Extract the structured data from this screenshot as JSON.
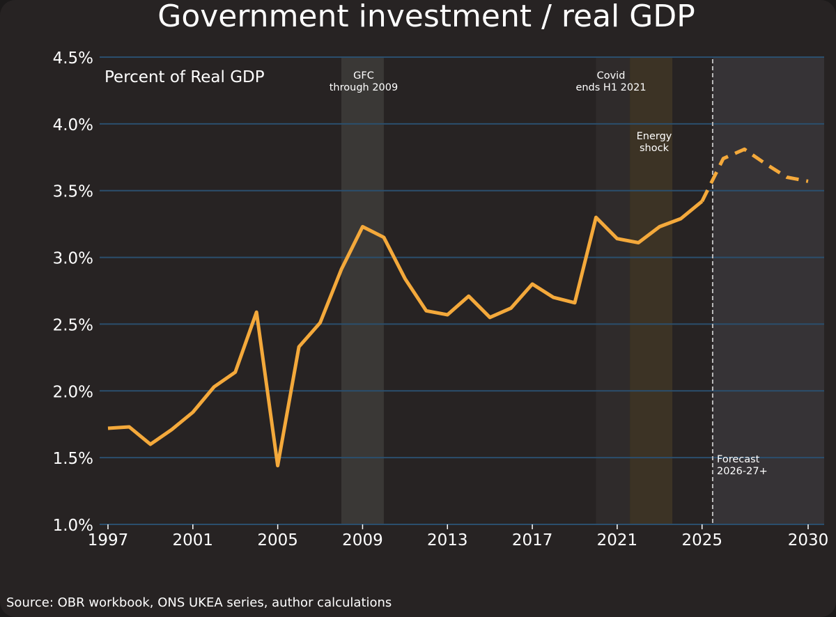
{
  "chart_data": {
    "type": "line",
    "title": "Government investment / real GDP",
    "subtitle": "Percent of Real GDP",
    "source": "Source: OBR workbook, ONS UKEA series, author calculations",
    "xlabel": "",
    "ylabel": "",
    "xlim": [
      1997,
      2030
    ],
    "ylim": [
      1.0,
      4.5
    ],
    "x_ticks": [
      "1997",
      "2001",
      "2005",
      "2009",
      "2013",
      "2017",
      "2021",
      "2025",
      "2030"
    ],
    "y_ticks": [
      "1.0%",
      "1.5%",
      "2.0%",
      "2.5%",
      "3.0%",
      "3.5%",
      "4.0%",
      "4.5%"
    ],
    "grid": "horizontal",
    "series": [
      {
        "style": "solid",
        "color": "#f4a93b",
        "x": [
          1997,
          1998,
          1999,
          2000,
          2001,
          2002,
          2003,
          2004,
          2005,
          2006,
          2007,
          2008,
          2009,
          2010,
          2011,
          2012,
          2013,
          2014,
          2015,
          2016,
          2017,
          2018,
          2019,
          2020,
          2021,
          2022,
          2023,
          2024,
          2025
        ],
        "values": [
          1.72,
          1.73,
          1.6,
          1.71,
          1.84,
          2.03,
          2.14,
          2.59,
          1.44,
          2.33,
          2.51,
          2.91,
          3.23,
          3.15,
          2.84,
          2.6,
          2.57,
          2.71,
          2.55,
          2.62,
          2.8,
          2.7,
          2.66,
          3.3,
          3.14,
          3.11,
          3.23,
          3.29,
          3.42
        ]
      },
      {
        "style": "dashed",
        "color": "#f4a93b",
        "x": [
          2025,
          2026,
          2027,
          2028,
          2029,
          2030
        ],
        "values": [
          3.42,
          3.74,
          3.81,
          3.7,
          3.6,
          3.57
        ]
      }
    ],
    "shaded_periods": [
      {
        "label": "GFC\nthrough 2009",
        "start": 2008,
        "end": 2010,
        "color": "#3a3836"
      },
      {
        "label": "Covid\nends H1 2021",
        "start": 2020,
        "end": 2021.6,
        "color": "#2f2b2b"
      },
      {
        "label": "Energy\nshock",
        "start": 2021.6,
        "end": 2023.6,
        "color": "#3c3325"
      },
      {
        "label": "Forecast\n2026-27+",
        "start": 2025.5,
        "end": 2031,
        "color": "#363336"
      }
    ],
    "forecast_marker_x": 2025.5,
    "colors": {
      "background": "#272323",
      "grid": "#2b4f6e",
      "line": "#f4a93b",
      "forecast_marker": "#bbbbbb",
      "text": "#ffffff"
    }
  }
}
